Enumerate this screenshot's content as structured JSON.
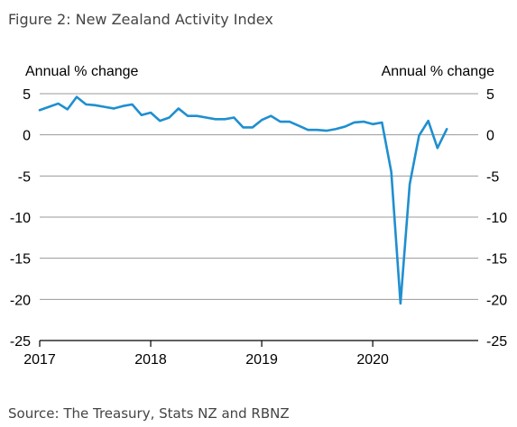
{
  "title": "Figure 2: New Zealand Activity Index",
  "source": "Source: The Treasury, Stats NZ and RBNZ",
  "colors": {
    "line": "#1f8fcf",
    "grid": "#999999",
    "axis": "#000000",
    "text": "#444444"
  },
  "chart_data": {
    "type": "line",
    "ylabel_left": "Annual % change",
    "ylabel_right": "Annual % change",
    "ylim": [
      -25,
      5
    ],
    "yticks": [
      5,
      0,
      -5,
      -10,
      -15,
      -20,
      -25
    ],
    "xlim": [
      2017,
      2020.95
    ],
    "xticks": [
      2017,
      2018,
      2019,
      2020
    ],
    "xtick_labels": [
      "2017",
      "2018",
      "2019",
      "2020"
    ],
    "grid": true,
    "legend": "none",
    "series": [
      {
        "x": [
          2017.0,
          2017.083,
          2017.167,
          2017.25,
          2017.333,
          2017.417,
          2017.5,
          2017.583,
          2017.667,
          2017.75,
          2017.833,
          2017.917,
          2018.0,
          2018.083,
          2018.167,
          2018.25,
          2018.333,
          2018.417,
          2018.5,
          2018.583,
          2018.667,
          2018.75,
          2018.833,
          2018.917,
          2019.0,
          2019.083,
          2019.167,
          2019.25,
          2019.333,
          2019.417,
          2019.5,
          2019.583,
          2019.667,
          2019.75,
          2019.833,
          2019.917,
          2020.0,
          2020.083,
          2020.167,
          2020.25,
          2020.333,
          2020.417,
          2020.5,
          2020.583,
          2020.667
        ],
        "values": [
          3.0,
          3.4,
          3.8,
          3.1,
          4.6,
          3.7,
          3.6,
          3.4,
          3.2,
          3.5,
          3.7,
          2.4,
          2.7,
          1.7,
          2.1,
          3.2,
          2.3,
          2.3,
          2.1,
          1.9,
          1.9,
          2.1,
          0.9,
          0.9,
          1.8,
          2.3,
          1.6,
          1.6,
          1.1,
          0.6,
          0.6,
          0.5,
          0.7,
          1.0,
          1.5,
          1.6,
          1.3,
          1.5,
          -4.5,
          -20.5,
          -6.0,
          -0.1,
          1.7,
          -1.6,
          0.7
        ]
      }
    ]
  }
}
